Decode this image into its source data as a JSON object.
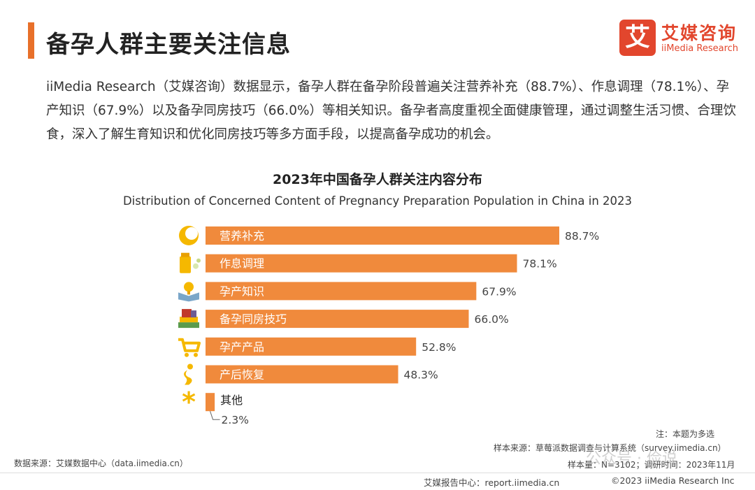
{
  "header": {
    "title": "备孕人群主要关注信息",
    "logo_mark": "艾",
    "logo_cn": "艾媒咨询",
    "logo_en": "iiMedia Research"
  },
  "intro": "iiMedia Research（艾媒咨询）数据显示，备孕人群在备孕阶段普遍关注营养补充（88.7%）、作息调理（78.1%）、孕产知识（67.9%）以及备孕同房技巧（66.0%）等相关知识。备孕者高度重视全面健康管理，通过调整生活习惯、合理饮食，深入了解生育知识和优化同房技巧等多方面手段，以提高备孕成功的机会。",
  "chart_data": {
    "type": "bar",
    "orientation": "horizontal",
    "title": "2023年中国备孕人群关注内容分布",
    "subtitle": "Distribution of Concerned Content of Pregnancy Preparation Population in China in 2023",
    "categories": [
      "营养补充",
      "作息调理",
      "孕产知识",
      "备孕同房技巧",
      "孕产产品",
      "产后恢复",
      "其他"
    ],
    "values": [
      88.7,
      78.1,
      67.9,
      66.0,
      52.8,
      48.3,
      2.3
    ],
    "value_labels": [
      "88.7%",
      "78.1%",
      "67.9%",
      "66.0%",
      "52.8%",
      "48.3%",
      "2.3%"
    ],
    "icons": [
      "moon-pill-icon",
      "nutrition-bottle-icon",
      "book-icon",
      "books-stack-icon",
      "shopping-cart-icon",
      "figure-icon",
      "asterisk-icon"
    ],
    "bar_color": "#f08a3c",
    "icon_color": "#f5b800",
    "xlim": [
      0,
      100
    ]
  },
  "notes": {
    "multi_select": "注：本题为多选",
    "sample_source": "样本来源：草莓派数据调查与计算系统（survey.iimedia.cn）",
    "sample_size": "样本量：N=3102；调研时间：2023年11月",
    "data_source": "数据来源：艾媒数据中心（data.iimedia.cn）"
  },
  "footer": {
    "report": "艾媒报告中心：report.iimedia.cn",
    "copyright": "©2023  iiMedia Research  Inc"
  },
  "watermark": "公众号 · 俭说",
  "colors": {
    "accent": "#e8702a",
    "brand": "#e2462d"
  }
}
